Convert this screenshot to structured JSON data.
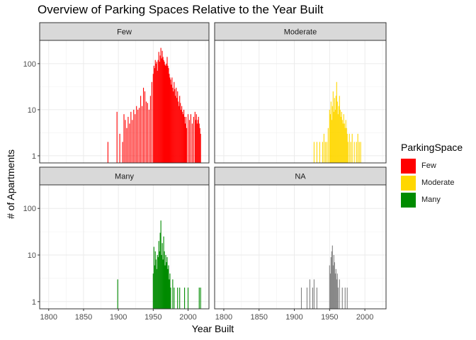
{
  "chart_data": {
    "type": "bar",
    "title": "Overview of Parking Spaces Relative to the Year Built",
    "xlabel": "Year Built",
    "ylabel": "# of Apartments",
    "x_ticks": [
      1800,
      1850,
      1900,
      1950,
      2000
    ],
    "y_ticks": [
      1,
      10,
      100
    ],
    "y_scale": "log10",
    "xlim": [
      1787,
      2030
    ],
    "ylim": [
      0.7,
      320
    ],
    "grid": true,
    "legend": {
      "title": "ParkingSpace",
      "position": "right",
      "entries": [
        {
          "label": "Few",
          "color": "#ff0000"
        },
        {
          "label": "Moderate",
          "color": "#ffd700"
        },
        {
          "label": "Many",
          "color": "#008b00"
        }
      ]
    },
    "panels": [
      {
        "strip": "Few",
        "color": "#ff0000",
        "points": [
          [
            1885,
            2
          ],
          [
            1898,
            9
          ],
          [
            1902,
            3
          ],
          [
            1906,
            2
          ],
          [
            1908,
            8
          ],
          [
            1910,
            6
          ],
          [
            1912,
            4
          ],
          [
            1914,
            7
          ],
          [
            1916,
            5
          ],
          [
            1918,
            9
          ],
          [
            1920,
            6
          ],
          [
            1922,
            10
          ],
          [
            1924,
            8
          ],
          [
            1926,
            12
          ],
          [
            1928,
            10
          ],
          [
            1930,
            11
          ],
          [
            1932,
            20
          ],
          [
            1934,
            12
          ],
          [
            1936,
            30
          ],
          [
            1938,
            25
          ],
          [
            1940,
            15
          ],
          [
            1942,
            14
          ],
          [
            1944,
            10
          ],
          [
            1946,
            20
          ],
          [
            1948,
            40
          ],
          [
            1950,
            60
          ],
          [
            1951,
            90
          ],
          [
            1952,
            80
          ],
          [
            1953,
            120
          ],
          [
            1954,
            100
          ],
          [
            1955,
            110
          ],
          [
            1956,
            70
          ],
          [
            1957,
            120
          ],
          [
            1958,
            180
          ],
          [
            1959,
            110
          ],
          [
            1960,
            150
          ],
          [
            1961,
            220
          ],
          [
            1962,
            130
          ],
          [
            1963,
            190
          ],
          [
            1964,
            140
          ],
          [
            1965,
            120
          ],
          [
            1966,
            110
          ],
          [
            1967,
            95
          ],
          [
            1968,
            90
          ],
          [
            1969,
            100
          ],
          [
            1970,
            140
          ],
          [
            1971,
            90
          ],
          [
            1972,
            80
          ],
          [
            1973,
            60
          ],
          [
            1974,
            50
          ],
          [
            1975,
            45
          ],
          [
            1976,
            35
          ],
          [
            1977,
            50
          ],
          [
            1978,
            30
          ],
          [
            1979,
            25
          ],
          [
            1980,
            40
          ],
          [
            1981,
            28
          ],
          [
            1982,
            20
          ],
          [
            1983,
            30
          ],
          [
            1984,
            18
          ],
          [
            1985,
            25
          ],
          [
            1986,
            15
          ],
          [
            1987,
            12
          ],
          [
            1988,
            20
          ],
          [
            1989,
            14
          ],
          [
            1990,
            10
          ],
          [
            1991,
            12
          ],
          [
            1992,
            9
          ],
          [
            1993,
            8
          ],
          [
            1994,
            10
          ],
          [
            1995,
            7
          ],
          [
            1996,
            5
          ],
          [
            1997,
            7
          ],
          [
            1998,
            4
          ],
          [
            2000,
            8
          ],
          [
            2002,
            6
          ],
          [
            2004,
            8
          ],
          [
            2006,
            5
          ],
          [
            2008,
            7
          ],
          [
            2010,
            9
          ],
          [
            2011,
            6
          ],
          [
            2012,
            8
          ],
          [
            2013,
            5
          ],
          [
            2014,
            6
          ],
          [
            2015,
            7
          ],
          [
            2016,
            5
          ],
          [
            2017,
            4
          ],
          [
            2018,
            3
          ]
        ]
      },
      {
        "strip": "Moderate",
        "color": "#ffd700",
        "points": [
          [
            1928,
            2
          ],
          [
            1932,
            2
          ],
          [
            1936,
            2
          ],
          [
            1940,
            2
          ],
          [
            1942,
            3
          ],
          [
            1944,
            2
          ],
          [
            1946,
            2
          ],
          [
            1948,
            4
          ],
          [
            1950,
            10
          ],
          [
            1951,
            8
          ],
          [
            1952,
            15
          ],
          [
            1953,
            6
          ],
          [
            1954,
            12
          ],
          [
            1955,
            25
          ],
          [
            1956,
            9
          ],
          [
            1957,
            18
          ],
          [
            1958,
            10
          ],
          [
            1959,
            20
          ],
          [
            1960,
            40
          ],
          [
            1961,
            15
          ],
          [
            1962,
            8
          ],
          [
            1963,
            12
          ],
          [
            1964,
            20
          ],
          [
            1965,
            10
          ],
          [
            1966,
            7
          ],
          [
            1967,
            9
          ],
          [
            1968,
            6
          ],
          [
            1969,
            5
          ],
          [
            1970,
            8
          ],
          [
            1971,
            5
          ],
          [
            1972,
            4
          ],
          [
            1973,
            6
          ],
          [
            1974,
            4
          ],
          [
            1975,
            3
          ],
          [
            1976,
            2
          ],
          [
            1978,
            3
          ],
          [
            1980,
            2
          ],
          [
            1982,
            3
          ],
          [
            1985,
            2
          ],
          [
            1988,
            2
          ],
          [
            1990,
            3
          ],
          [
            1992,
            2
          ],
          [
            1994,
            2
          ]
        ]
      },
      {
        "strip": "Many",
        "color": "#008b00",
        "points": [
          [
            1899,
            3
          ],
          [
            1950,
            4
          ],
          [
            1951,
            15
          ],
          [
            1952,
            6
          ],
          [
            1953,
            12
          ],
          [
            1954,
            8
          ],
          [
            1955,
            5
          ],
          [
            1956,
            10
          ],
          [
            1957,
            9
          ],
          [
            1958,
            20
          ],
          [
            1959,
            12
          ],
          [
            1960,
            30
          ],
          [
            1961,
            55
          ],
          [
            1962,
            10
          ],
          [
            1963,
            18
          ],
          [
            1964,
            8
          ],
          [
            1965,
            25
          ],
          [
            1966,
            12
          ],
          [
            1967,
            6
          ],
          [
            1968,
            10
          ],
          [
            1969,
            7
          ],
          [
            1970,
            9
          ],
          [
            1971,
            5
          ],
          [
            1972,
            6
          ],
          [
            1973,
            3
          ],
          [
            1974,
            4
          ],
          [
            1975,
            2
          ],
          [
            1978,
            3
          ],
          [
            1980,
            2
          ],
          [
            1985,
            2
          ],
          [
            1988,
            2
          ],
          [
            1995,
            2
          ],
          [
            2000,
            2
          ],
          [
            2016,
            2
          ],
          [
            2018,
            2
          ]
        ]
      },
      {
        "strip": "NA",
        "color": "#808080",
        "points": [
          [
            1910,
            2
          ],
          [
            1918,
            2
          ],
          [
            1922,
            3
          ],
          [
            1926,
            2
          ],
          [
            1928,
            3
          ],
          [
            1932,
            2
          ],
          [
            1950,
            6
          ],
          [
            1951,
            4
          ],
          [
            1952,
            9
          ],
          [
            1953,
            12
          ],
          [
            1954,
            16
          ],
          [
            1955,
            6
          ],
          [
            1956,
            10
          ],
          [
            1957,
            7
          ],
          [
            1958,
            4
          ],
          [
            1959,
            5
          ],
          [
            1960,
            3
          ],
          [
            1961,
            4
          ],
          [
            1962,
            2
          ],
          [
            1964,
            3
          ],
          [
            1968,
            2
          ],
          [
            1972,
            2
          ],
          [
            1975,
            2
          ]
        ]
      }
    ]
  }
}
